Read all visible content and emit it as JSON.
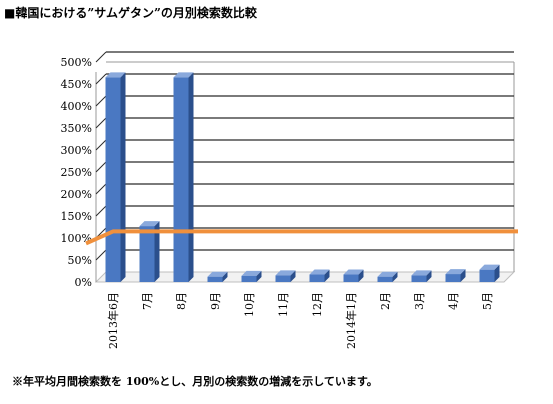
{
  "title": "■韓国における”サムゲタン”の月別検索数比較",
  "note": "※年平均月間検索数を 100%とし、月別の検索数の増減を示しています。",
  "chart_data": {
    "type": "bar",
    "categories": [
      "2013年6月",
      "7月",
      "8月",
      "9月",
      "10月",
      "11月",
      "12月",
      "2014年1月",
      "2月",
      "3月",
      "4月",
      "5月"
    ],
    "series": [
      {
        "values": [
          465,
          127,
          465,
          12,
          14,
          15,
          17,
          17,
          12,
          15,
          18,
          28
        ]
      }
    ],
    "reference_line": {
      "value": 115
    },
    "yticks": [
      "0%",
      "50%",
      "100%",
      "150%",
      "200%",
      "250%",
      "300%",
      "350%",
      "400%",
      "450%",
      "500%"
    ],
    "ylim": [
      0,
      500
    ],
    "grid": true,
    "colors": {
      "bar": "#4a78c2",
      "bar_side": "#2b4f8c",
      "bar_top": "#8aa9dc",
      "line": "#f0903c"
    }
  }
}
